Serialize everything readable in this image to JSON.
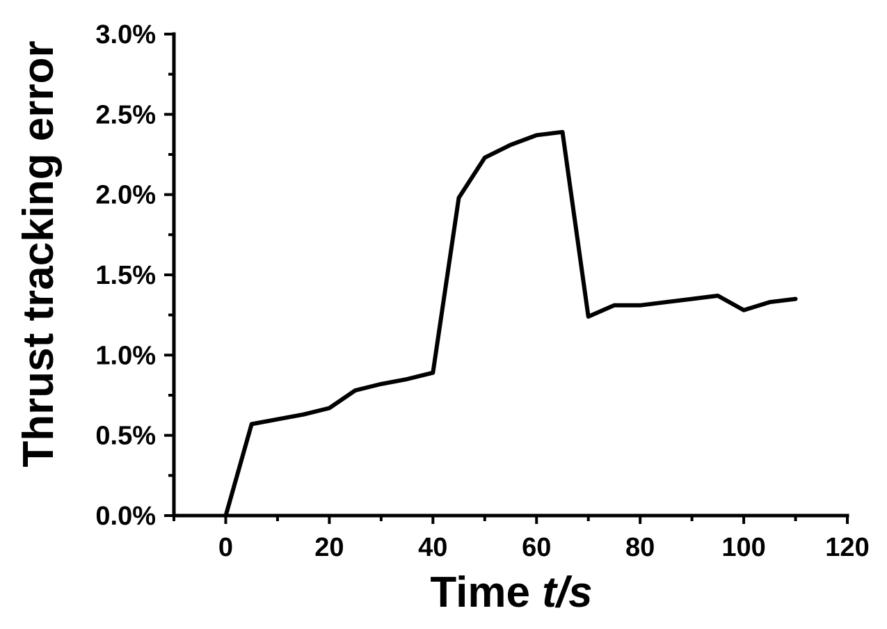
{
  "chart_data": {
    "type": "line",
    "title": "",
    "xlabel_main": "Time ",
    "xlabel_italic": "t/s",
    "ylabel": "Thrust tracking error",
    "xlim": [
      -10,
      120
    ],
    "ylim": [
      0,
      3.0
    ],
    "x_major_ticks": [
      0,
      20,
      40,
      60,
      80,
      100,
      120
    ],
    "x_tick_labels": [
      "0",
      "20",
      "40",
      "60",
      "80",
      "100",
      "120"
    ],
    "y_major_ticks": [
      0,
      0.5,
      1.0,
      1.5,
      2.0,
      2.5,
      3.0
    ],
    "y_tick_labels": [
      "0.0%",
      "0.5%",
      "1.0%",
      "1.5%",
      "2.0%",
      "2.5%",
      "3.0%"
    ],
    "grid": false,
    "legend": "none",
    "series": [
      {
        "color": "#000000",
        "x": [
          0,
          5,
          10,
          15,
          20,
          25,
          30,
          35,
          40,
          45,
          50,
          55,
          60,
          65,
          70,
          75,
          80,
          85,
          90,
          95,
          100,
          105,
          110
        ],
        "y": [
          0.0,
          0.57,
          0.6,
          0.63,
          0.67,
          0.78,
          0.82,
          0.85,
          0.89,
          1.98,
          2.23,
          2.31,
          2.37,
          2.39,
          1.24,
          1.31,
          1.31,
          1.33,
          1.35,
          1.37,
          1.28,
          1.33,
          1.35
        ]
      }
    ]
  }
}
